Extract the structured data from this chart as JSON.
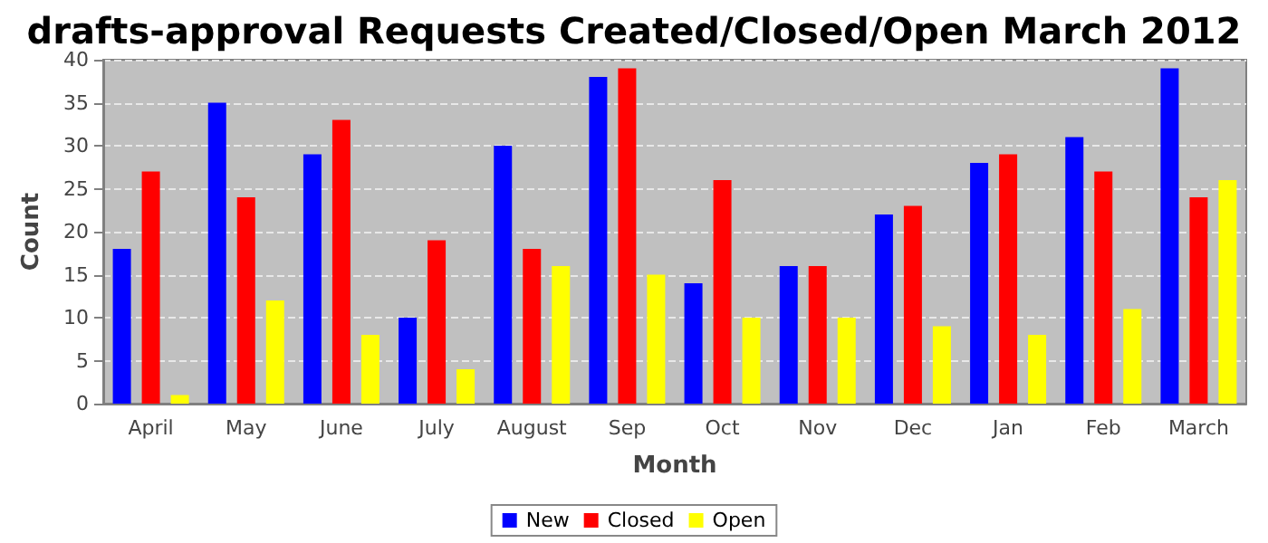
{
  "chart_data": {
    "type": "bar",
    "title": "drafts-approval Requests Created/Closed/Open March 2012",
    "xlabel": "Month",
    "ylabel": "Count",
    "categories": [
      "April",
      "May",
      "June",
      "July",
      "August",
      "Sep",
      "Oct",
      "Nov",
      "Dec",
      "Jan",
      "Feb",
      "March"
    ],
    "series": [
      {
        "name": "New",
        "color": "#0000ff",
        "values": [
          18,
          35,
          29,
          10,
          30,
          38,
          14,
          16,
          22,
          28,
          31,
          39
        ]
      },
      {
        "name": "Closed",
        "color": "#ff0000",
        "values": [
          27,
          24,
          33,
          19,
          18,
          39,
          26,
          16,
          23,
          29,
          27,
          24
        ]
      },
      {
        "name": "Open",
        "color": "#ffff00",
        "values": [
          1,
          12,
          8,
          4,
          16,
          15,
          10,
          10,
          9,
          8,
          11,
          26
        ]
      }
    ],
    "ylim": [
      0,
      40
    ],
    "yticks": [
      0,
      5,
      10,
      15,
      20,
      25,
      30,
      35,
      40
    ],
    "grid": "y",
    "legend": "bottom"
  }
}
